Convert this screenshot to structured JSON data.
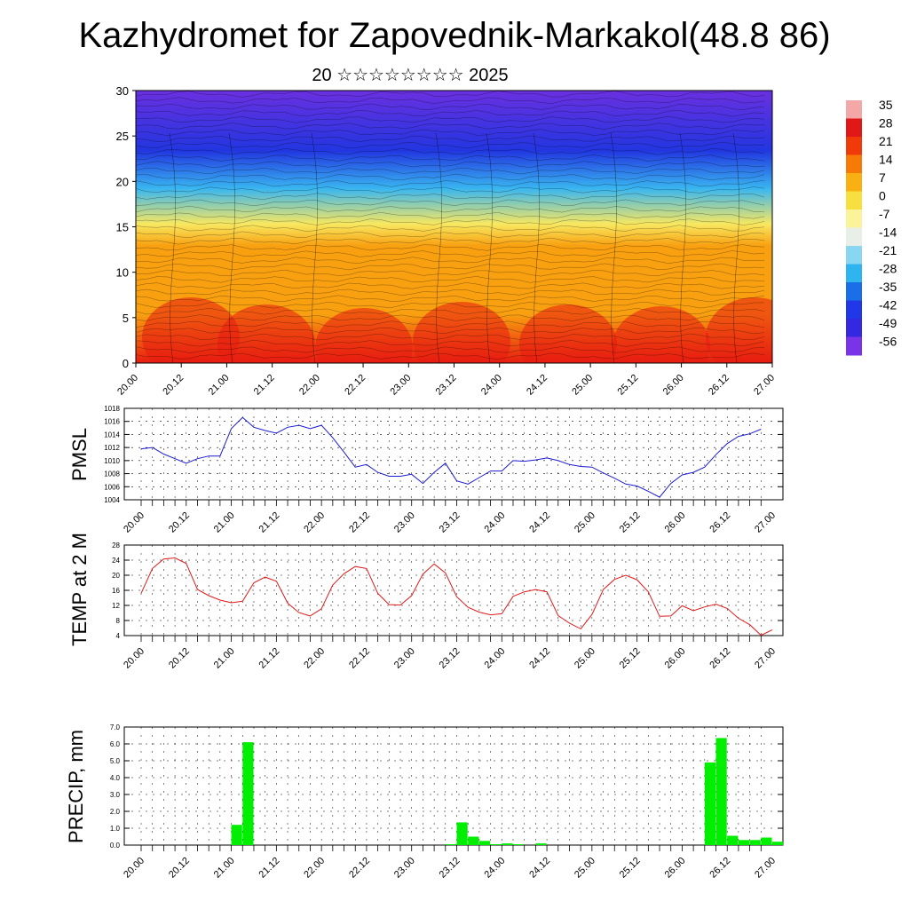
{
  "title": "Kazhydromet for Zapovednik-Markakol(48.8 86)",
  "subtitle": "20 ☆☆☆☆☆☆☆☆ 2025",
  "chart_data": [
    {
      "type": "heatmap",
      "ylim": [
        0,
        30
      ],
      "yticks": [
        "0",
        "5",
        "10",
        "15",
        "20",
        "25",
        "30"
      ],
      "xticks": [
        "20.00",
        "20.12",
        "21.00",
        "21.12",
        "22.00",
        "22.12",
        "23.00",
        "23.12",
        "24.00",
        "24.12",
        "25.00",
        "25.12",
        "26.00",
        "26.12",
        "27.00"
      ],
      "colorbar": {
        "labels": [
          "35",
          "28",
          "21",
          "14",
          "7",
          "0",
          "-7",
          "-14",
          "-21",
          "-28",
          "-35",
          "-42",
          "-49",
          "-56"
        ],
        "colors": [
          "#f3a7a7",
          "#e01818",
          "#f03a0a",
          "#f77a08",
          "#f9b012",
          "#f8df40",
          "#fbf39a",
          "#e8eee8",
          "#89d6f2",
          "#2eb4ee",
          "#1a6fe8",
          "#2038e8",
          "#3428e0",
          "#7a34e8"
        ]
      },
      "field_colors": {
        "low_hot": "#e81c10",
        "mid_warm": "#f8a010",
        "freezing": "#f8e860",
        "cold": "#39b6f0",
        "very_cold": "#2236e0",
        "top": "#6a30e0"
      }
    },
    {
      "type": "line",
      "ylabel": "PMSL",
      "ylim": [
        1004,
        1018
      ],
      "yticks": [
        "1004",
        "1006",
        "1008",
        "1010",
        "1012",
        "1014",
        "1016",
        "1018"
      ],
      "xticks": [
        "20.00",
        "20.12",
        "21.00",
        "21.12",
        "22.00",
        "22.12",
        "23.00",
        "23.12",
        "24.00",
        "24.12",
        "25.00",
        "25.12",
        "26.00",
        "26.12",
        "27.00"
      ],
      "color": "#1a1ad0",
      "series": [
        {
          "values": [
            1011.8,
            1012.0,
            1011.0,
            1010.3,
            1009.6,
            1010.3,
            1010.7,
            1010.7,
            1014.9,
            1016.6,
            1015.1,
            1014.6,
            1014.2,
            1015.1,
            1015.4,
            1014.9,
            1015.4,
            1013.5,
            1011.3,
            1009.0,
            1009.4,
            1008.2,
            1007.6,
            1007.6,
            1007.9,
            1006.5,
            1008.2,
            1009.6,
            1006.9,
            1006.4,
            1007.4,
            1008.4,
            1008.4,
            1010.0,
            1009.9,
            1010.1,
            1010.4,
            1010.0,
            1009.4,
            1009.1,
            1009.0,
            1008.1,
            1007.3,
            1006.4,
            1006.1,
            1005.3,
            1004.4,
            1006.5,
            1007.8,
            1008.2,
            1009.0,
            1010.9,
            1012.6,
            1013.7,
            1014.1,
            1014.8
          ]
        }
      ]
    },
    {
      "type": "line",
      "ylabel": "TEMP at 2 M",
      "ylim": [
        4,
        28
      ],
      "yticks": [
        "4",
        "8",
        "12",
        "16",
        "20",
        "24",
        "28"
      ],
      "xticks": [
        "20.00",
        "20.12",
        "21.00",
        "21.12",
        "22.00",
        "22.12",
        "23.00",
        "23.12",
        "24.00",
        "24.12",
        "25.00",
        "25.12",
        "26.00",
        "26.12",
        "27.00"
      ],
      "color": "#e01a1a",
      "series": [
        {
          "values": [
            15.2,
            21.8,
            24.3,
            24.6,
            23.1,
            16.2,
            14.6,
            13.4,
            12.7,
            13.1,
            18.0,
            19.5,
            18.4,
            12.6,
            10.1,
            9.2,
            11.1,
            17.4,
            20.4,
            22.3,
            21.8,
            15.2,
            12.2,
            12.1,
            14.6,
            20.3,
            23.0,
            20.6,
            14.3,
            11.5,
            10.2,
            9.5,
            9.8,
            14.4,
            15.6,
            16.2,
            15.6,
            9.3,
            7.3,
            5.8,
            9.6,
            16.2,
            18.9,
            20.0,
            18.8,
            15.6,
            9.1,
            9.2,
            11.9,
            10.6,
            11.6,
            12.3,
            11.2,
            8.6,
            6.9,
            4.1,
            5.5
          ]
        }
      ]
    },
    {
      "type": "bar",
      "ylabel": "PRECIP, mm",
      "ylim": [
        0,
        7
      ],
      "yticks": [
        "0.0",
        "1.0",
        "2.0",
        "3.0",
        "4.0",
        "5.0",
        "6.0",
        "7.0"
      ],
      "xticks": [
        "20.00",
        "20.12",
        "21.00",
        "21.12",
        "22.00",
        "22.12",
        "23.00",
        "23.12",
        "24.00",
        "24.12",
        "25.00",
        "25.12",
        "26.00",
        "26.12",
        "27.00"
      ],
      "color": "#00ee00",
      "values": [
        0,
        0,
        0,
        0,
        0,
        0,
        0,
        0,
        1.2,
        6.1,
        0,
        0,
        0,
        0,
        0,
        0,
        0,
        0,
        0,
        0,
        0,
        0,
        0,
        0,
        0,
        0,
        0,
        0.05,
        1.35,
        0.5,
        0.25,
        0.05,
        0.1,
        0.05,
        0,
        0.1,
        0,
        0,
        0,
        0,
        0,
        0,
        0,
        0,
        0,
        0,
        0,
        0,
        0,
        0,
        4.9,
        6.35,
        0.55,
        0.3,
        0.3,
        0.45,
        0.2
      ]
    }
  ]
}
